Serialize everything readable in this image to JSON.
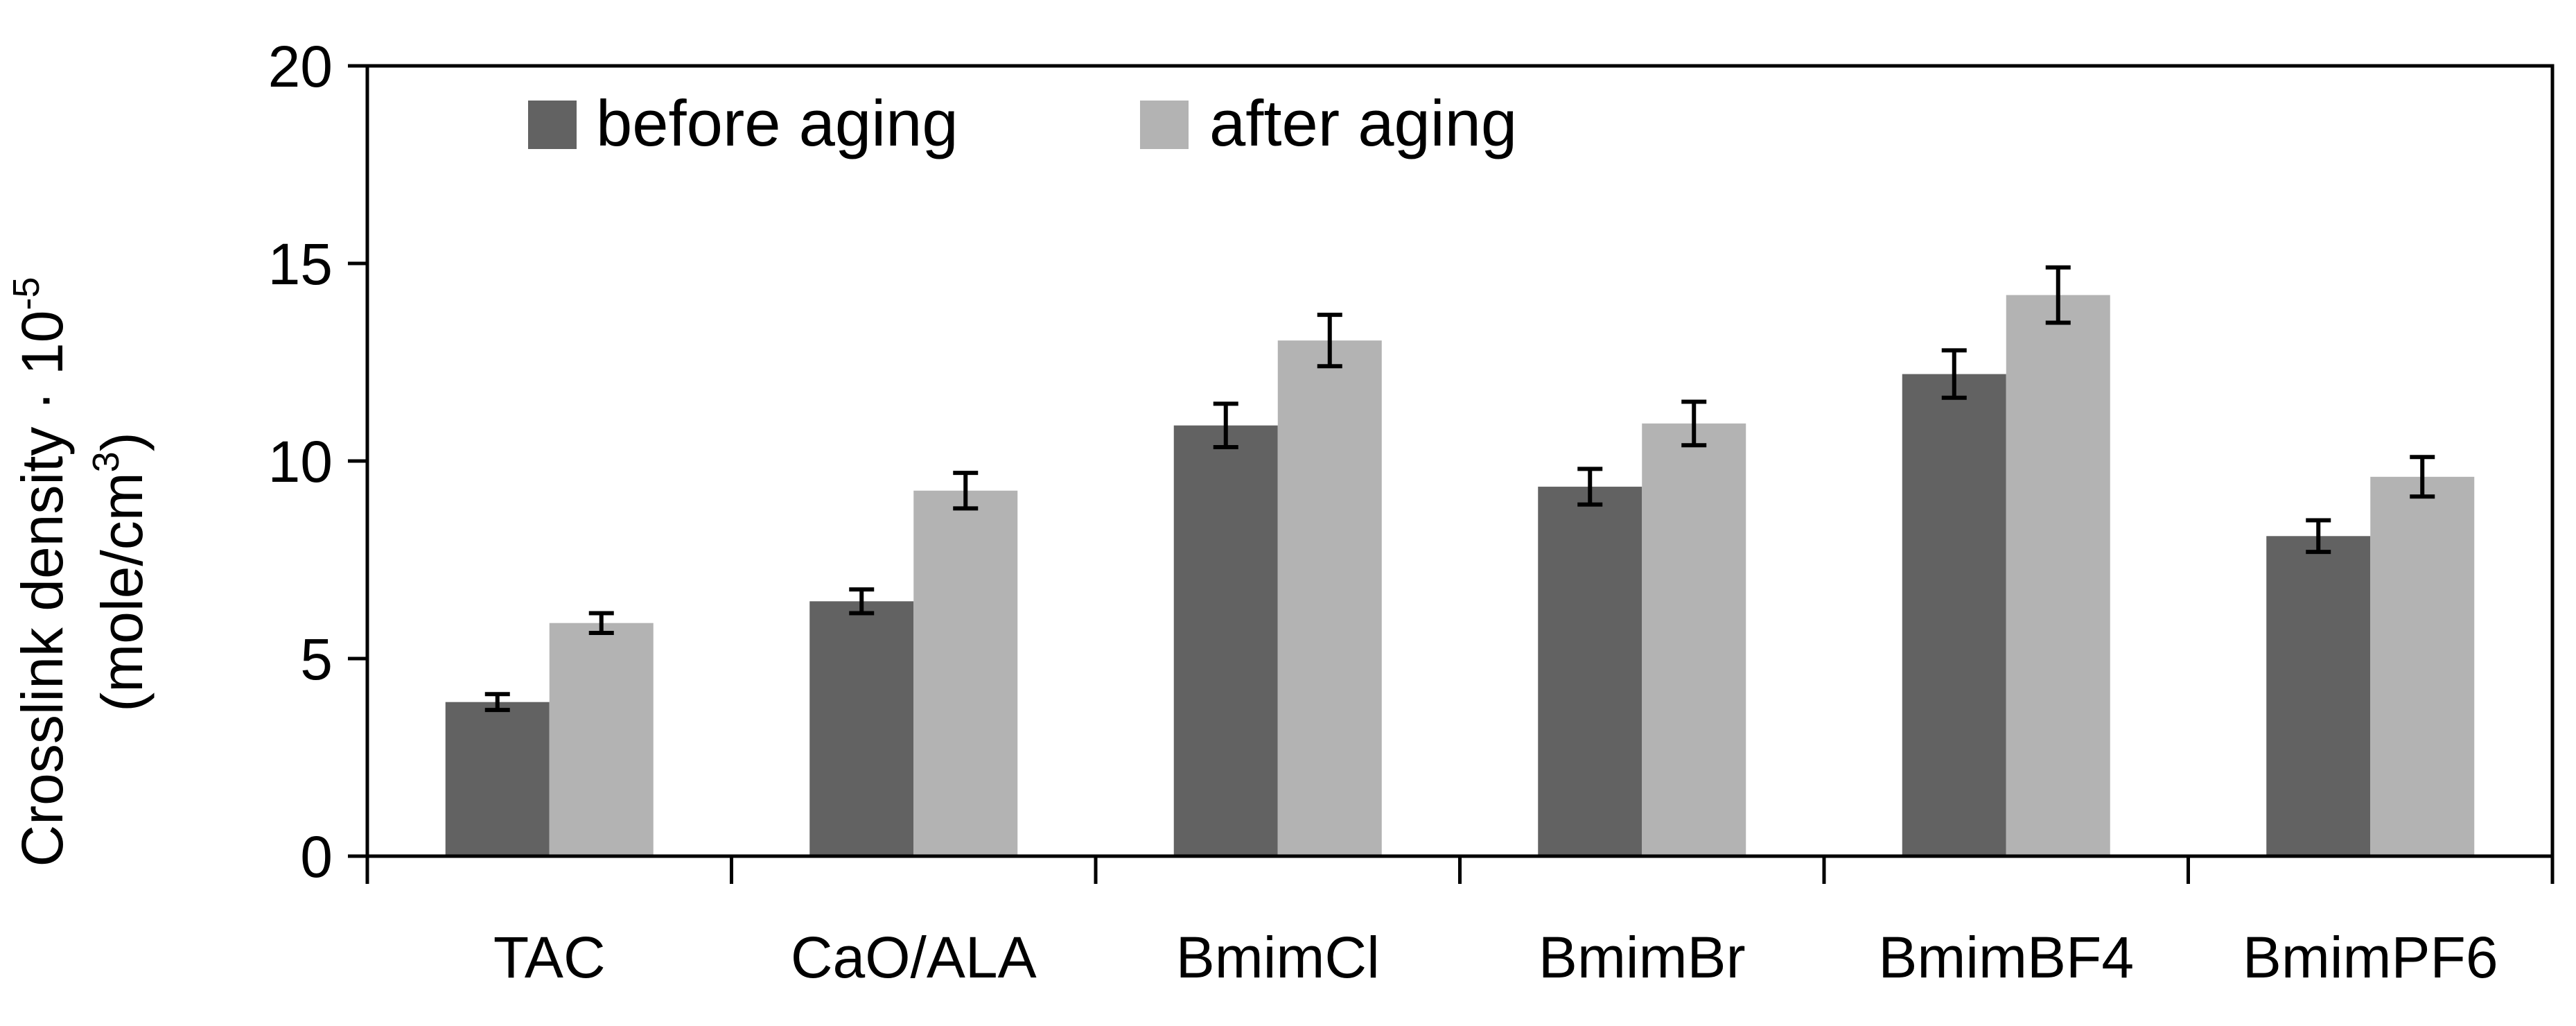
{
  "chart_data": {
    "type": "bar",
    "title": "",
    "xlabel": "",
    "ylabel_line1": "Crosslink density · 10",
    "ylabel_line1_exp": "-5",
    "ylabel_line2": "(mole/cm",
    "ylabel_line2_exp": "3",
    "ylabel_line2_close": ")",
    "ylim": [
      0,
      20
    ],
    "yticks": [
      "0",
      "5",
      "10",
      "15",
      "20"
    ],
    "ytick_values": [
      0,
      5,
      10,
      15,
      20
    ],
    "grid": false,
    "legend_position": "top-left",
    "categories": [
      "TAC",
      "CaO/ALA",
      "BmimCl",
      "BmimBr",
      "BmimBF4",
      "BmimPF6"
    ],
    "series": [
      {
        "name": "before aging",
        "color": "#626262",
        "values": [
          3.9,
          6.45,
          10.9,
          9.35,
          12.2,
          8.1
        ],
        "errors": [
          0.2,
          0.3,
          0.55,
          0.45,
          0.6,
          0.4
        ]
      },
      {
        "name": "after aging",
        "color": "#b3b3b3",
        "values": [
          5.9,
          9.25,
          13.05,
          10.95,
          14.2,
          9.6
        ],
        "errors": [
          0.25,
          0.45,
          0.65,
          0.55,
          0.7,
          0.5
        ]
      }
    ]
  }
}
